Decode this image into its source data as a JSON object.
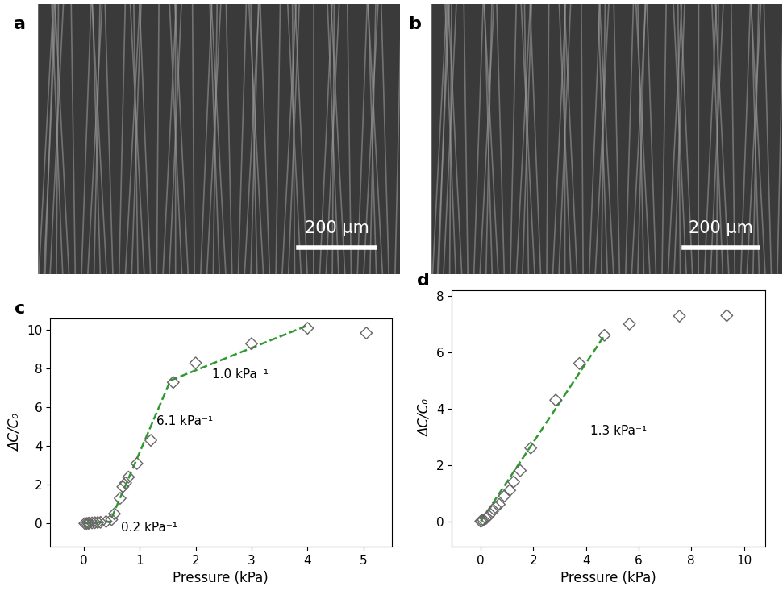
{
  "images": [
    {
      "label": "a",
      "scale_bar": "200 µm"
    },
    {
      "label": "b",
      "scale_bar": "200 µm"
    }
  ],
  "chart_data": [
    {
      "type": "scatter",
      "title": "c",
      "xlabel": "Pressure (kPa)",
      "ylabel": "ΔC/C₀",
      "x": [
        0.02,
        0.05,
        0.08,
        0.1,
        0.15,
        0.2,
        0.25,
        0.3,
        0.4,
        0.5,
        0.55,
        0.65,
        0.7,
        0.75,
        0.8,
        0.95,
        1.2,
        1.6,
        2.0,
        3.0,
        4.0,
        5.05
      ],
      "values": [
        0,
        0,
        0.01,
        0.02,
        0.03,
        0.04,
        0.05,
        0.06,
        0.1,
        0.2,
        0.5,
        1.3,
        1.9,
        2.1,
        2.4,
        3.1,
        4.3,
        7.3,
        8.3,
        9.3,
        10.1,
        9.85
      ],
      "color": "#666666",
      "marker": "diamond",
      "fits": [
        {
          "x": [
            0,
            0.5
          ],
          "y": [
            0,
            0.1
          ]
        },
        {
          "x": [
            0.5,
            1.55
          ],
          "y": [
            0.3,
            7.4
          ]
        },
        {
          "x": [
            1.55,
            4.05
          ],
          "y": [
            7.4,
            10.3
          ]
        }
      ],
      "annotations": [
        {
          "text": "0.2 kPa⁻¹",
          "x": 0.67,
          "y": -0.2
        },
        {
          "text": "6.1 kPa⁻¹",
          "x": 1.3,
          "y": 5.3
        },
        {
          "text": "1.0 kPa⁻¹",
          "x": 2.3,
          "y": 7.7
        }
      ],
      "xlim": [
        -0.6,
        5.5
      ],
      "xticks": [
        0,
        1,
        2,
        3,
        4,
        5
      ],
      "ylim": [
        -1.2,
        10.6
      ],
      "yticks": [
        0,
        2,
        4,
        6,
        8,
        10
      ]
    },
    {
      "type": "scatter",
      "title": "d",
      "xlabel": "Pressure (kPa)",
      "ylabel": "ΔC/C₀",
      "x": [
        0,
        0.05,
        0.1,
        0.2,
        0.3,
        0.45,
        0.55,
        0.7,
        0.9,
        1.1,
        1.25,
        1.5,
        1.9,
        2.85,
        3.75,
        4.7,
        5.65,
        7.55,
        9.35
      ],
      "values": [
        0,
        0.02,
        0.05,
        0.1,
        0.2,
        0.35,
        0.5,
        0.6,
        0.9,
        1.1,
        1.4,
        1.8,
        2.6,
        4.3,
        5.6,
        6.6,
        7.0,
        7.28,
        7.3
      ],
      "color": "#666666",
      "marker": "diamond",
      "fits": [
        {
          "x": [
            0,
            4.7
          ],
          "y": [
            0,
            6.6
          ]
        }
      ],
      "annotations": [
        {
          "text": "1.3 kPa⁻¹",
          "x": 4.15,
          "y": 3.2
        }
      ],
      "xlim": [
        -1.1,
        10.8
      ],
      "xticks": [
        0,
        2,
        4,
        6,
        8,
        10
      ],
      "ylim": [
        -0.9,
        8.2
      ],
      "yticks": [
        0,
        2,
        4,
        6,
        8
      ]
    }
  ]
}
